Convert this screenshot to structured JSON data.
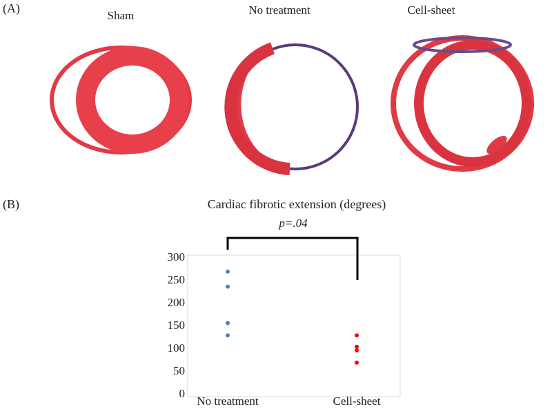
{
  "panel_labels": [
    "(A)",
    "(B)"
  ],
  "image_titles": [
    "Sham",
    "No treatment",
    "Cell-sheet"
  ],
  "chart_data": {
    "type": "strip",
    "title": "Cardiac fibrotic extension (degrees)",
    "annotation": "p=.04",
    "categories": [
      "No treatment",
      "Cell-sheet"
    ],
    "values": [
      [
        270,
        237,
        157,
        130
      ],
      [
        130,
        105,
        97,
        70
      ]
    ],
    "colors": [
      "#4f81bd",
      "#ff0000"
    ],
    "ylim": [
      0,
      300
    ],
    "yticks": [
      0,
      50,
      100,
      150,
      200,
      250,
      300
    ]
  }
}
